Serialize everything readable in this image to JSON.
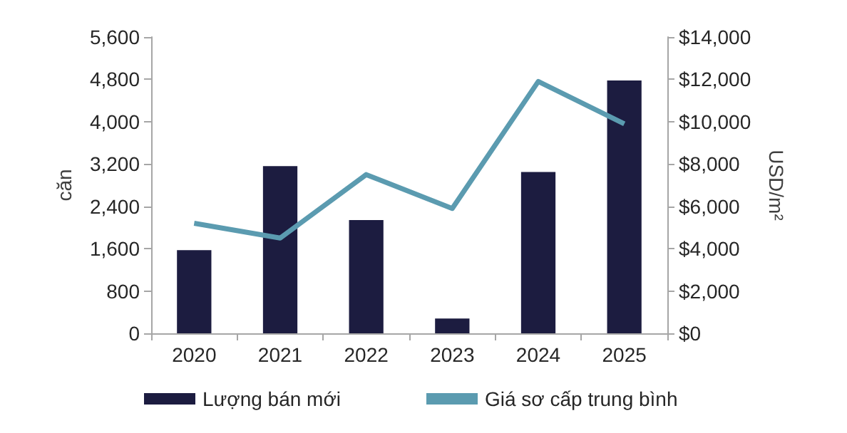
{
  "chart_data": {
    "type": "bar",
    "categories": [
      "2020",
      "2021",
      "2022",
      "2023",
      "2024",
      "2025"
    ],
    "ylabel": "căn",
    "y2label": "USD/m²",
    "series": [
      {
        "name": "Lượng bán mới",
        "color": "#1c1c40",
        "values": [
          1570,
          3160,
          2140,
          280,
          3050,
          4780
        ]
      },
      {
        "name": "Giá sơ cấp trung bình",
        "type": "line",
        "axis": "y2",
        "color": "#5b9bb0",
        "values": [
          5200,
          4500,
          7500,
          5900,
          11900,
          9900
        ]
      }
    ],
    "ylim": [
      0,
      5600
    ],
    "yticks": [
      0,
      800,
      {
        "value": 1600,
        "label": "1,600"
      },
      {
        "value": 2400,
        "label": "2,400"
      },
      {
        "value": 3200,
        "label": "3,200"
      },
      {
        "value": 4000,
        "label": "4,000"
      },
      {
        "value": 4800,
        "label": "4,800"
      },
      {
        "value": 5600,
        "label": "5,600"
      }
    ],
    "y2lim": [
      0,
      14000
    ],
    "y2ticks": [
      {
        "value": 0,
        "label": "$0"
      },
      {
        "value": 2000,
        "label": "$2,000"
      },
      {
        "value": 4000,
        "label": "$4,000"
      },
      {
        "value": 6000,
        "label": "$6,000"
      },
      {
        "value": 8000,
        "label": "$8,000"
      },
      {
        "value": 10000,
        "label": "$10,000"
      },
      {
        "value": 12000,
        "label": "$12,000"
      },
      {
        "value": 14000,
        "label": "$14,000"
      }
    ],
    "grid": false,
    "legend": "bottom",
    "marker": "none"
  }
}
